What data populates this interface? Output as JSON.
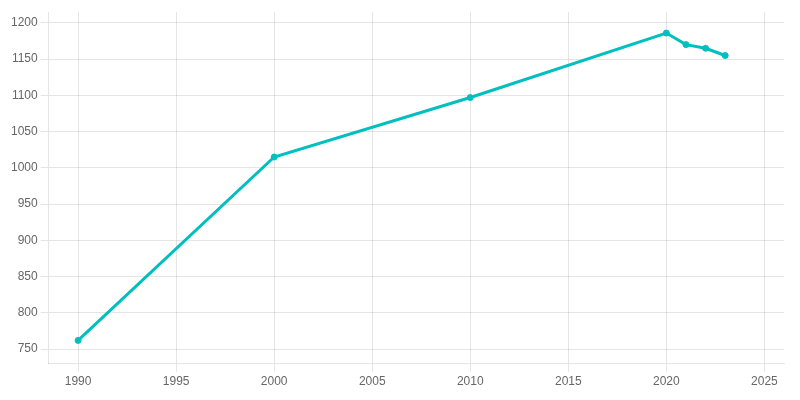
{
  "chart_data": {
    "type": "line",
    "x": [
      1990,
      2000,
      2010,
      2020,
      2021,
      2022,
      2023
    ],
    "values": [
      762,
      1015,
      1097,
      1186,
      1170,
      1165,
      1155
    ],
    "color": "#00BFBF",
    "marker": "circle",
    "xlim": [
      1988.5,
      2026
    ],
    "ylim": [
      730,
      1215
    ],
    "xticks": [
      1990,
      1995,
      2000,
      2005,
      2010,
      2015,
      2020,
      2025
    ],
    "yticks": [
      750,
      800,
      850,
      900,
      950,
      1000,
      1050,
      1100,
      1150,
      1200
    ],
    "grid": true
  }
}
